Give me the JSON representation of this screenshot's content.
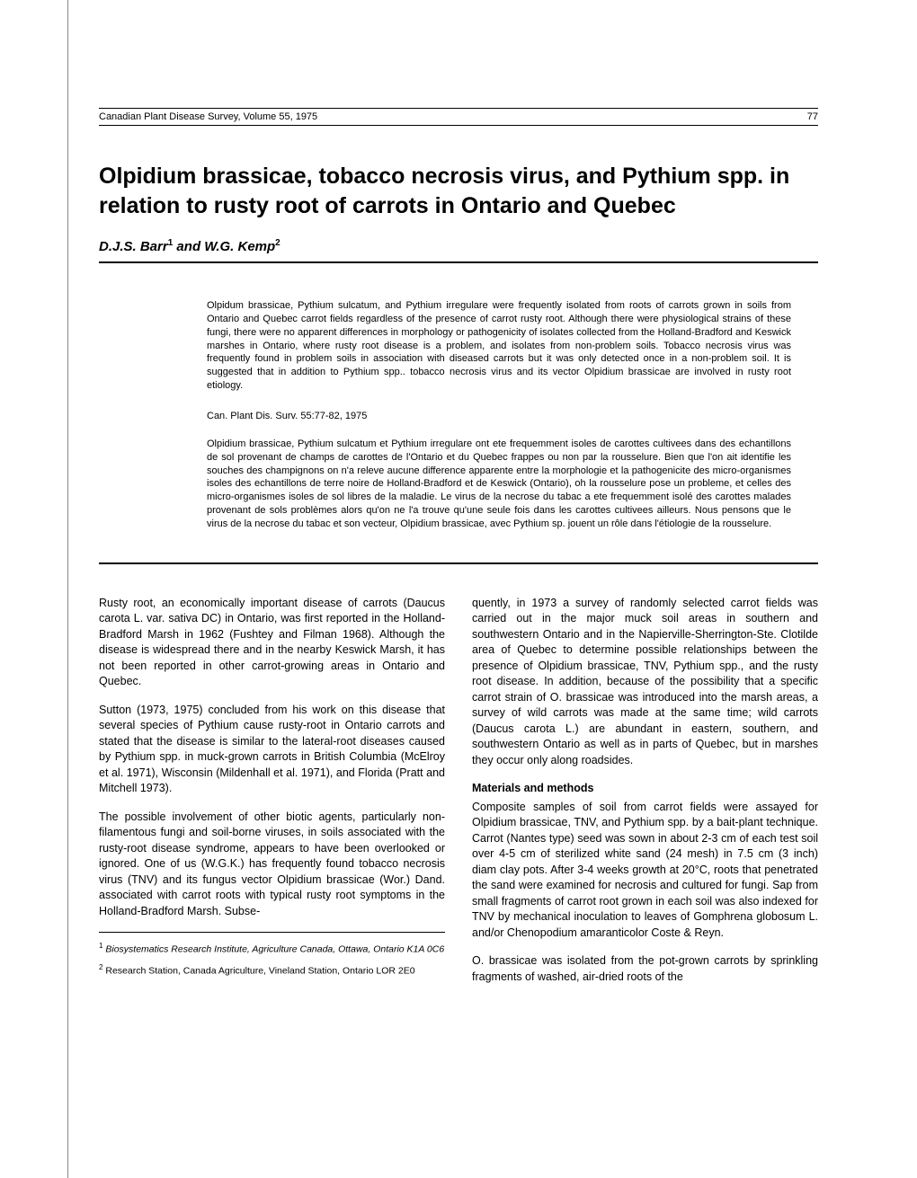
{
  "header": {
    "journal": "Canadian Plant Disease Survey, Volume 55, 1975",
    "page_number": "77"
  },
  "title": "Olpidium brassicae, tobacco necrosis virus, and Pythium spp. in relation to rusty root of carrots in Ontario and Quebec",
  "authors": {
    "text_prefix": "D.J.S. Barr",
    "sup1": "1",
    "text_mid": " and W.G. Kemp",
    "sup2": "2"
  },
  "abstract_en": "Olpidum brassicae, Pythium sulcatum, and Pythium irregulare were frequently isolated from roots of carrots grown in soils from Ontario and Quebec carrot fields regardless of the presence of carrot rusty root. Although there were physiological strains of these fungi, there were no apparent differences in morphology or pathogenicity of isolates collected from the Holland-Bradford and Keswick marshes in Ontario, where rusty root disease is a problem, and isolates from non-problem soils. Tobacco necrosis virus was frequently found in problem soils in association with diseased carrots but it was only detected once in a non-problem soil. It is suggested that in addition to Pythium spp.. tobacco necrosis virus and its vector Olpidium brassicae are involved in rusty root etiology.",
  "citation": "Can. Plant Dis. Surv. 55:77-82, 1975",
  "abstract_fr": "Olpidium brassicae, Pythium sulcatum et Pythium irregulare ont ete frequemment isoles de carottes cultivees dans des echantillons de sol provenant de champs de carottes de l'Ontario et du Quebec frappes ou non par la rousselure. Bien que l'on ait identifie les souches des champignons on n'a releve aucune difference apparente entre la morphologie et la pathogenicite des micro-organismes isoles des echantillons de terre noire de Holland-Bradford et de Keswick (Ontario), oh la rousselure pose un probleme, et celles des micro-organismes isoles de sol libres de la maladie. Le virus de la necrose du tabac a ete frequemment isolé des carottes malades provenant de sols problèmes alors qu'on ne l'a trouve qu'une seule fois dans les carottes cultivees ailleurs. Nous pensons que le virus de la necrose du tabac et son vecteur, Olpidium brassicae, avec Pythium sp. jouent un rôle dans l'étiologie de la rousselure.",
  "body": {
    "left_col": {
      "p1": "Rusty root, an economically important disease of carrots (Daucus carota L. var. sativa DC) in Ontario, was first reported in the Holland-Bradford Marsh in 1962 (Fushtey and Filman 1968). Although the disease is widespread there and in the nearby Keswick Marsh, it has not been reported in other carrot-growing areas in Ontario and Quebec.",
      "p2": "Sutton (1973, 1975) concluded from his work on this disease that several species of Pythium cause rusty-root in Ontario carrots and stated that the disease is similar to the lateral-root diseases caused by Pythium spp. in muck-grown carrots in British Columbia (McElroy et al. 1971), Wisconsin (Mildenhall et al. 1971), and Florida (Pratt and Mitchell 1973).",
      "p3": "The possible involvement of other biotic agents, particularly non-filamentous fungi and soil-borne viruses, in soils associated with the rusty-root disease syndrome, appears to have been overlooked or ignored. One of us (W.G.K.) has frequently found tobacco necrosis virus (TNV) and its fungus vector Olpidium brassicae (Wor.) Dand. associated with carrot roots with typical rusty root symptoms in the Holland-Bradford Marsh. Subse-"
    },
    "right_col": {
      "p1": "quently, in 1973 a survey of randomly selected carrot fields was carried out in the major muck soil areas in southern and southwestern Ontario and in the Napierville-Sherrington-Ste. Clotilde area of Quebec to determine possible relationships between the presence of Olpidium brassicae, TNV, Pythium spp., and the rusty root disease. In addition, because of the possibility that a specific carrot strain of O. brassicae was introduced into the marsh areas, a survey of wild carrots was made at the same time; wild carrots (Daucus carota L.) are abundant in eastern, southern, and southwestern Ontario as well as in parts of Quebec, but in marshes they occur only along roadsides.",
      "section_head": "Materials and methods",
      "p2": "Composite samples of soil from carrot fields were assayed for Olpidium brassicae, TNV, and Pythium spp. by a bait-plant technique. Carrot (Nantes type) seed was sown in about 2-3 cm of each test soil over 4-5 cm of sterilized white sand (24 mesh) in 7.5 cm (3 inch) diam clay pots. After 3-4 weeks growth at 20°C, roots that penetrated the sand were examined for necrosis and cultured for fungi. Sap from small fragments of carrot root grown in each soil was also indexed for TNV by mechanical inoculation to leaves of Gomphrena globosum L. and/or Chenopodium amaranticolor Coste & Reyn.",
      "p3": "O. brassicae was isolated from the pot-grown carrots by sprinkling fragments of washed, air-dried roots of the"
    }
  },
  "footnotes": {
    "fn1_num": "1",
    "fn1": " Biosystematics Research Institute, Agriculture Canada, Ottawa, Ontario K1A 0C6",
    "fn2_num": "2",
    "fn2": " Research Station, Canada Agriculture, Vineland Station, Ontario LOR 2E0"
  }
}
